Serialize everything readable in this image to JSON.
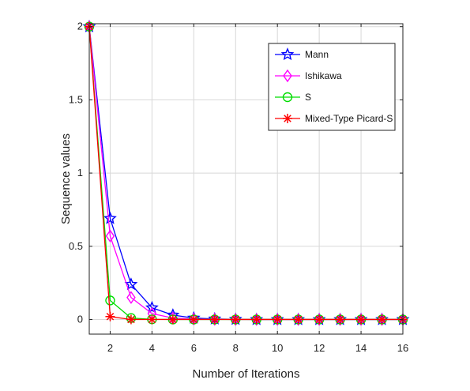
{
  "chart_data": {
    "type": "line",
    "xlabel": "Number of Iterations",
    "ylabel": "Sequence values",
    "xlim": [
      1,
      16
    ],
    "ylim": [
      -0.1,
      2.02
    ],
    "xticks": [
      2,
      4,
      6,
      8,
      10,
      12,
      14,
      16
    ],
    "yticks": [
      0,
      0.5,
      1,
      1.5,
      2
    ],
    "grid": true,
    "legend_position": "top-right",
    "x": [
      1,
      2,
      3,
      4,
      5,
      6,
      7,
      8,
      9,
      10,
      11,
      12,
      13,
      14,
      15,
      16
    ],
    "series": [
      {
        "name": "Mann",
        "color": "#0000ff",
        "marker": "star",
        "values": [
          2.0,
          0.69,
          0.24,
          0.08,
          0.03,
          0.01,
          0.004,
          0.001,
          0,
          0,
          0,
          0,
          0,
          0,
          0,
          0
        ]
      },
      {
        "name": "Ishikawa",
        "color": "#ff00ff",
        "marker": "diamond",
        "values": [
          2.0,
          0.57,
          0.15,
          0.04,
          0.01,
          0.003,
          0.001,
          0,
          0,
          0,
          0,
          0,
          0,
          0,
          0,
          0
        ]
      },
      {
        "name": "S",
        "color": "#00dd00",
        "marker": "circle",
        "values": [
          2.0,
          0.13,
          0.01,
          0.001,
          0,
          0,
          0,
          0,
          0,
          0,
          0,
          0,
          0,
          0,
          0,
          0
        ]
      },
      {
        "name": "Mixed-Type Picard-S",
        "color": "#ff0000",
        "marker": "asterisk",
        "values": [
          2.0,
          0.02,
          0.0,
          0,
          0,
          0,
          0,
          0,
          0,
          0,
          0,
          0,
          0,
          0,
          0,
          0
        ]
      }
    ]
  }
}
